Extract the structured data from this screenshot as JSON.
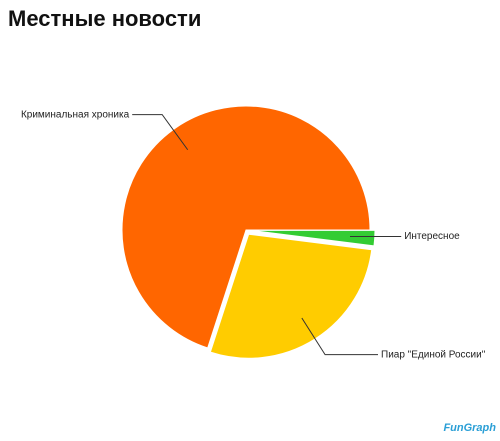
{
  "chart_data": {
    "type": "pie",
    "title": "Местные новости",
    "categories": [
      "Интересное",
      "Пиар \"Единой России\"",
      "Криминальная хроника"
    ],
    "values": [
      2,
      28,
      70
    ],
    "colors": [
      "#33cc33",
      "#ffcc00",
      "#ff6600"
    ],
    "watermark": "FunGraph"
  }
}
